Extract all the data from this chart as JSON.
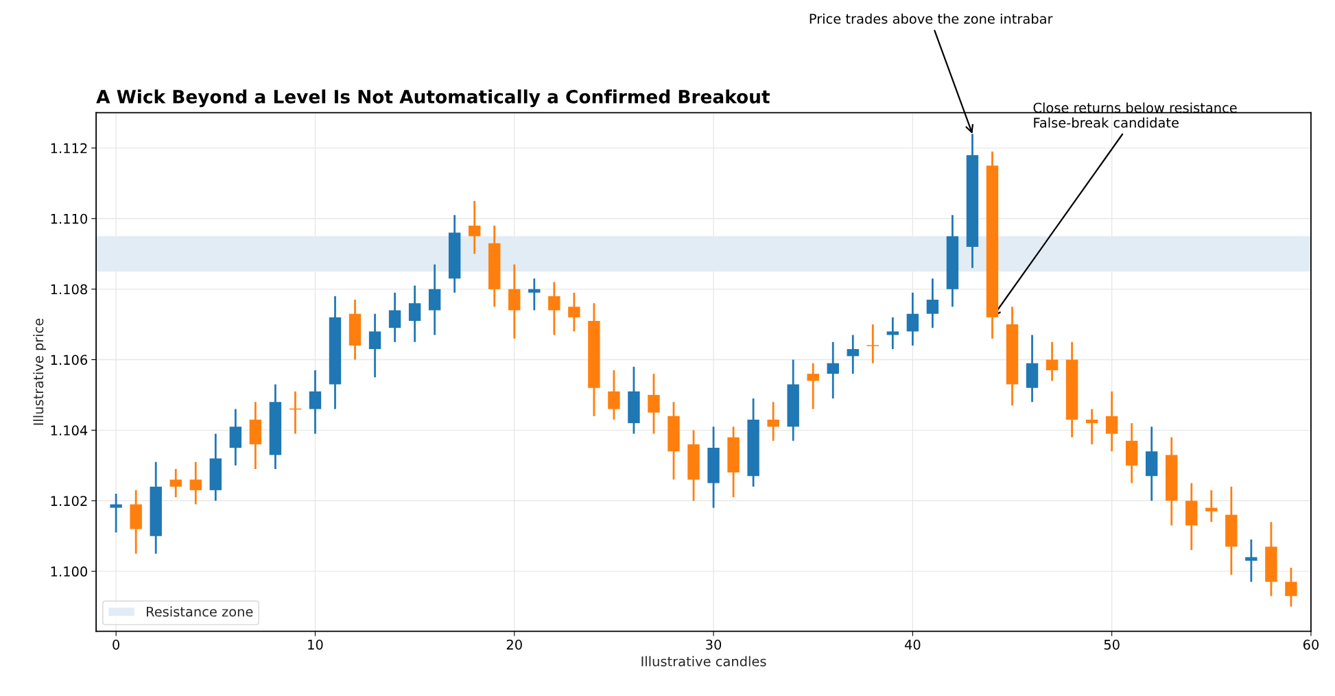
{
  "chart_data": {
    "type": "candlestick",
    "title": "A Wick Beyond a Level Is Not Automatically a Confirmed Breakout",
    "xlabel": "Illustrative candles",
    "ylabel": "Illustrative price",
    "x": [
      0,
      1,
      2,
      3,
      4,
      5,
      6,
      7,
      8,
      9,
      10,
      11,
      12,
      13,
      14,
      15,
      16,
      17,
      18,
      19,
      20,
      21,
      22,
      23,
      24,
      25,
      26,
      27,
      28,
      29,
      30,
      31,
      32,
      33,
      34,
      35,
      36,
      37,
      38,
      39,
      40,
      41,
      42,
      43,
      44,
      45,
      46,
      47,
      48,
      49,
      50,
      51,
      52,
      53,
      54,
      55,
      56,
      57,
      58,
      59
    ],
    "ohlc": [
      [
        1.1018,
        1.1022,
        1.1011,
        1.1019
      ],
      [
        1.1019,
        1.1023,
        1.1005,
        1.1012
      ],
      [
        1.101,
        1.1031,
        1.1005,
        1.1024
      ],
      [
        1.1026,
        1.1029,
        1.1021,
        1.1024
      ],
      [
        1.1026,
        1.1031,
        1.1019,
        1.1023
      ],
      [
        1.1023,
        1.1039,
        1.102,
        1.1032
      ],
      [
        1.1035,
        1.1046,
        1.103,
        1.1041
      ],
      [
        1.1043,
        1.1048,
        1.1029,
        1.1036
      ],
      [
        1.1033,
        1.1053,
        1.1029,
        1.1048
      ],
      [
        1.1046,
        1.1051,
        1.1039,
        1.1046
      ],
      [
        1.1046,
        1.1057,
        1.1039,
        1.1051
      ],
      [
        1.1053,
        1.1078,
        1.1046,
        1.1072
      ],
      [
        1.1073,
        1.1077,
        1.106,
        1.1064
      ],
      [
        1.1063,
        1.1073,
        1.1055,
        1.1068
      ],
      [
        1.1069,
        1.1079,
        1.1065,
        1.1074
      ],
      [
        1.1071,
        1.1081,
        1.1065,
        1.1076
      ],
      [
        1.1074,
        1.1087,
        1.1067,
        1.108
      ],
      [
        1.1083,
        1.1101,
        1.1079,
        1.1096
      ],
      [
        1.1098,
        1.1105,
        1.109,
        1.1095
      ],
      [
        1.1093,
        1.1098,
        1.1075,
        1.108
      ],
      [
        1.108,
        1.1087,
        1.1066,
        1.1074
      ],
      [
        1.1079,
        1.1083,
        1.1074,
        1.108
      ],
      [
        1.1078,
        1.1082,
        1.1067,
        1.1074
      ],
      [
        1.1075,
        1.1079,
        1.1068,
        1.1072
      ],
      [
        1.1071,
        1.1076,
        1.1044,
        1.1052
      ],
      [
        1.1051,
        1.1057,
        1.1043,
        1.1046
      ],
      [
        1.1042,
        1.1058,
        1.1039,
        1.1051
      ],
      [
        1.105,
        1.1056,
        1.1039,
        1.1045
      ],
      [
        1.1044,
        1.1048,
        1.1026,
        1.1034
      ],
      [
        1.1036,
        1.104,
        1.102,
        1.1026
      ],
      [
        1.1025,
        1.1041,
        1.1018,
        1.1035
      ],
      [
        1.1038,
        1.1041,
        1.1021,
        1.1028
      ],
      [
        1.1027,
        1.1049,
        1.1024,
        1.1043
      ],
      [
        1.1043,
        1.1048,
        1.1037,
        1.1041
      ],
      [
        1.1041,
        1.106,
        1.1037,
        1.1053
      ],
      [
        1.1056,
        1.1059,
        1.1046,
        1.1054
      ],
      [
        1.1056,
        1.1065,
        1.1049,
        1.1059
      ],
      [
        1.1061,
        1.1067,
        1.1056,
        1.1063
      ],
      [
        1.1064,
        1.107,
        1.1059,
        1.1064
      ],
      [
        1.1067,
        1.1072,
        1.1063,
        1.1068
      ],
      [
        1.1068,
        1.1079,
        1.1064,
        1.1073
      ],
      [
        1.1073,
        1.1083,
        1.1069,
        1.1077
      ],
      [
        1.108,
        1.1101,
        1.1075,
        1.1095
      ],
      [
        1.1092,
        1.1124,
        1.1086,
        1.1118
      ],
      [
        1.1115,
        1.1119,
        1.1066,
        1.1072
      ],
      [
        1.107,
        1.1075,
        1.1047,
        1.1053
      ],
      [
        1.1052,
        1.1067,
        1.1048,
        1.1059
      ],
      [
        1.106,
        1.1065,
        1.1054,
        1.1057
      ],
      [
        1.106,
        1.1065,
        1.1038,
        1.1043
      ],
      [
        1.1043,
        1.1046,
        1.1036,
        1.1042
      ],
      [
        1.1044,
        1.1051,
        1.1034,
        1.1039
      ],
      [
        1.1037,
        1.1042,
        1.1025,
        1.103
      ],
      [
        1.1027,
        1.1041,
        1.102,
        1.1034
      ],
      [
        1.1033,
        1.1038,
        1.1013,
        1.102
      ],
      [
        1.102,
        1.1025,
        1.1006,
        1.1013
      ],
      [
        1.1018,
        1.1023,
        1.1014,
        1.1017
      ],
      [
        1.1016,
        1.1024,
        1.0999,
        1.1007
      ],
      [
        1.1003,
        1.1009,
        1.0997,
        1.1004
      ],
      [
        1.1007,
        1.1014,
        1.0993,
        1.0997
      ],
      [
        1.0997,
        1.1001,
        1.099,
        1.0993
      ]
    ],
    "colors": [
      "#1f77b4",
      "#ff7f0e",
      "#1f77b4",
      "#ff7f0e",
      "#ff7f0e",
      "#1f77b4",
      "#1f77b4",
      "#ff7f0e",
      "#1f77b4",
      "#ff7f0e",
      "#1f77b4",
      "#1f77b4",
      "#ff7f0e",
      "#1f77b4",
      "#1f77b4",
      "#1f77b4",
      "#1f77b4",
      "#1f77b4",
      "#ff7f0e",
      "#ff7f0e",
      "#ff7f0e",
      "#1f77b4",
      "#ff7f0e",
      "#ff7f0e",
      "#ff7f0e",
      "#ff7f0e",
      "#1f77b4",
      "#ff7f0e",
      "#ff7f0e",
      "#ff7f0e",
      "#1f77b4",
      "#ff7f0e",
      "#1f77b4",
      "#ff7f0e",
      "#1f77b4",
      "#ff7f0e",
      "#1f77b4",
      "#1f77b4",
      "#ff7f0e",
      "#1f77b4",
      "#1f77b4",
      "#1f77b4",
      "#1f77b4",
      "#1f77b4",
      "#ff7f0e",
      "#ff7f0e",
      "#1f77b4",
      "#ff7f0e",
      "#ff7f0e",
      "#ff7f0e",
      "#ff7f0e",
      "#ff7f0e",
      "#1f77b4",
      "#ff7f0e",
      "#ff7f0e",
      "#ff7f0e",
      "#ff7f0e",
      "#1f77b4",
      "#ff7f0e",
      "#ff7f0e"
    ],
    "bands": [
      {
        "axis": "y",
        "from": 1.1085,
        "to": 1.1095,
        "label": "Resistance zone",
        "color": "#e1ecf5"
      }
    ],
    "annotations": [
      {
        "text": "Price trades above the zone intrabar",
        "x": 43,
        "y": 1.1124
      },
      {
        "text": "Close returns below resistance\nFalse-break candidate",
        "x": 44,
        "y": 1.1072
      }
    ],
    "xlim": [
      -1,
      60
    ],
    "xticks": [
      0,
      10,
      20,
      30,
      40,
      50,
      60
    ],
    "ylim": [
      1.0983,
      1.113
    ],
    "yticks": [
      {
        "value": 1.1,
        "label": "1.100"
      },
      {
        "value": 1.102,
        "label": "1.102"
      },
      {
        "value": 1.104,
        "label": "1.104"
      },
      {
        "value": 1.106,
        "label": "1.106"
      },
      {
        "value": 1.108,
        "label": "1.108"
      },
      {
        "value": 1.11,
        "label": "1.110"
      },
      {
        "value": 1.112,
        "label": "1.112"
      }
    ],
    "grid": true,
    "legend": "bottom left"
  }
}
